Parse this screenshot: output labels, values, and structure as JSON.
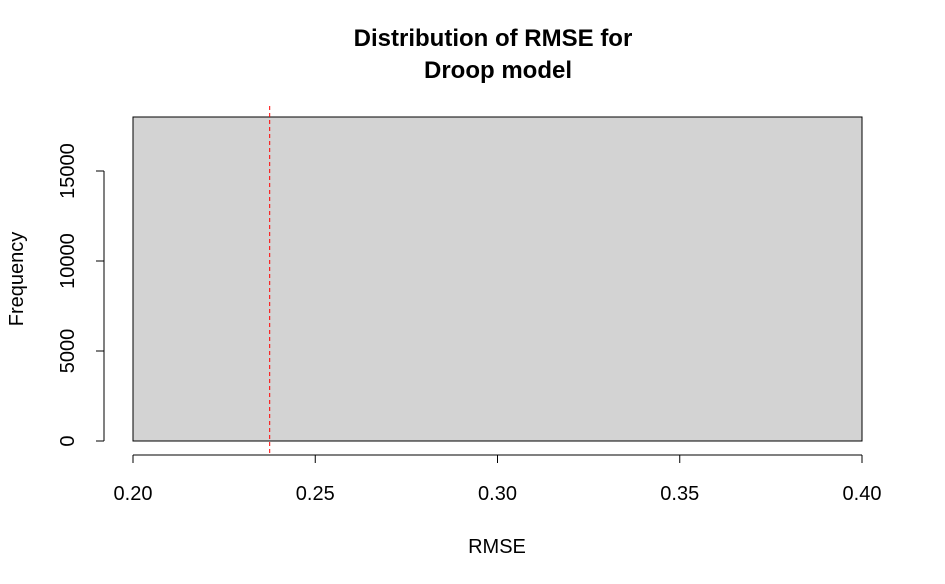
{
  "chart_data": {
    "type": "bar",
    "title_lines": [
      "Distribution of RMSE for",
      "Droop model"
    ],
    "xlabel": "RMSE",
    "ylabel": "Frequency",
    "xlim": [
      0.2,
      0.4
    ],
    "ylim": [
      0,
      18000
    ],
    "x_ticks": [
      {
        "value": 0.2,
        "label": "0.20"
      },
      {
        "value": 0.25,
        "label": "0.25"
      },
      {
        "value": 0.3,
        "label": "0.30"
      },
      {
        "value": 0.35,
        "label": "0.35"
      },
      {
        "value": 0.4,
        "label": "0.40"
      }
    ],
    "y_ticks": [
      {
        "value": 0,
        "label": "0"
      },
      {
        "value": 5000,
        "label": "5000"
      },
      {
        "value": 10000,
        "label": "10000"
      },
      {
        "value": 15000,
        "label": "15000"
      }
    ],
    "bins": [
      {
        "x0": 0.2,
        "x1": 0.4,
        "count": 18000
      }
    ],
    "reference_line": {
      "x": 0.2375,
      "color": "#ff0000",
      "style": "dashed"
    },
    "bar_color": "#d3d3d3",
    "grid": false
  }
}
